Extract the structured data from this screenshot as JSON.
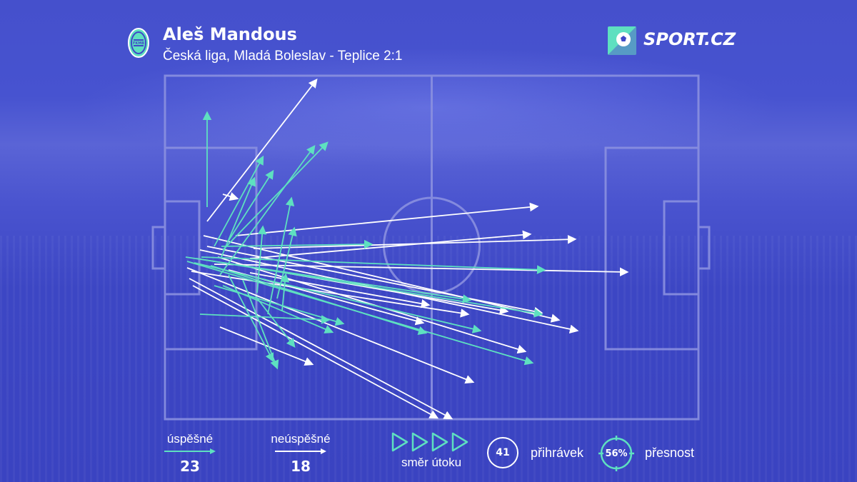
{
  "header": {
    "player_name": "Aleš Mandous",
    "match_info": "Česká liga, Mladá Boleslav - Teplice 2:1",
    "club_badge_icon": "club-crest-icon",
    "brand_name": "SPORT.CZ",
    "brand_icon": "soccer-ball-icon"
  },
  "colors": {
    "background": "#3f48c8",
    "successful": "#5ee0c0",
    "unsuccessful": "#ffffff",
    "pitch_lines": "#8a90e0"
  },
  "passes": {
    "successful": [
      {
        "from": [
          290,
          290
        ],
        "to": [
          290,
          158
        ]
      },
      {
        "from": [
          308,
          385
        ],
        "to": [
          440,
          205
        ]
      },
      {
        "from": [
          312,
          350
        ],
        "to": [
          458,
          200
        ]
      },
      {
        "from": [
          318,
          340
        ],
        "to": [
          382,
          240
        ]
      },
      {
        "from": [
          300,
          345
        ],
        "to": [
          368,
          220
        ]
      },
      {
        "from": [
          310,
          360
        ],
        "to": [
          356,
          250
        ]
      },
      {
        "from": [
          375,
          440
        ],
        "to": [
          408,
          278
        ]
      },
      {
        "from": [
          388,
          418
        ],
        "to": [
          412,
          320
        ]
      },
      {
        "from": [
          395,
          435
        ],
        "to": [
          400,
          385
        ]
      },
      {
        "from": [
          360,
          410
        ],
        "to": [
          368,
          318
        ]
      },
      {
        "from": [
          310,
          345
        ],
        "to": [
          520,
          342
        ]
      },
      {
        "from": [
          282,
          360
        ],
        "to": [
          762,
          378
        ]
      },
      {
        "from": [
          260,
          360
        ],
        "to": [
          658,
          420
        ]
      },
      {
        "from": [
          275,
          362
        ],
        "to": [
          758,
          440
        ]
      },
      {
        "from": [
          262,
          366
        ],
        "to": [
          745,
          508
        ]
      },
      {
        "from": [
          295,
          372
        ],
        "to": [
          596,
          466
        ]
      },
      {
        "from": [
          272,
          368
        ],
        "to": [
          672,
          463
        ]
      },
      {
        "from": [
          280,
          440
        ],
        "to": [
          460,
          448
        ]
      },
      {
        "from": [
          300,
          400
        ],
        "to": [
          480,
          453
        ]
      },
      {
        "from": [
          312,
          400
        ],
        "to": [
          465,
          465
        ]
      },
      {
        "from": [
          340,
          392
        ],
        "to": [
          388,
          515
        ]
      },
      {
        "from": [
          320,
          385
        ],
        "to": [
          382,
          505
        ]
      },
      {
        "from": [
          358,
          415
        ],
        "to": [
          412,
          485
        ]
      }
    ],
    "unsuccessful": [
      {
        "from": [
          290,
          310
        ],
        "to": [
          443,
          112
        ]
      },
      {
        "from": [
          312,
          272
        ],
        "to": [
          332,
          278
        ]
      },
      {
        "from": [
          330,
          330
        ],
        "to": [
          752,
          289
        ]
      },
      {
        "from": [
          350,
          362
        ],
        "to": [
          742,
          328
        ]
      },
      {
        "from": [
          355,
          348
        ],
        "to": [
          805,
          335
        ]
      },
      {
        "from": [
          300,
          370
        ],
        "to": [
          878,
          381
        ]
      },
      {
        "from": [
          285,
          330
        ],
        "to": [
          782,
          448
        ]
      },
      {
        "from": [
          290,
          345
        ],
        "to": [
          758,
          438
        ]
      },
      {
        "from": [
          305,
          360
        ],
        "to": [
          735,
          492
        ]
      },
      {
        "from": [
          280,
          350
        ],
        "to": [
          808,
          463
        ]
      },
      {
        "from": [
          268,
          380
        ],
        "to": [
          655,
          440
        ]
      },
      {
        "from": [
          262,
          375
        ],
        "to": [
          662,
          535
        ]
      },
      {
        "from": [
          265,
          390
        ],
        "to": [
          632,
          586
        ]
      },
      {
        "from": [
          270,
          400
        ],
        "to": [
          612,
          585
        ]
      },
      {
        "from": [
          308,
          458
        ],
        "to": [
          437,
          510
        ]
      },
      {
        "from": [
          350,
          382
        ],
        "to": [
          600,
          427
        ]
      },
      {
        "from": [
          320,
          378
        ],
        "to": [
          592,
          452
        ]
      },
      {
        "from": [
          330,
          370
        ],
        "to": [
          710,
          436
        ]
      }
    ]
  },
  "legend": {
    "successful_label": "úspěšné",
    "successful_count": "23",
    "unsuccessful_label": "neúspěšné",
    "unsuccessful_count": "18",
    "direction_label": "směr útoku",
    "direction_icon": "attack-direction-arrows-icon",
    "total_passes": "41",
    "total_label": "přihrávek",
    "accuracy": "56%",
    "accuracy_value": 0.56,
    "accuracy_label": "přesnost"
  }
}
